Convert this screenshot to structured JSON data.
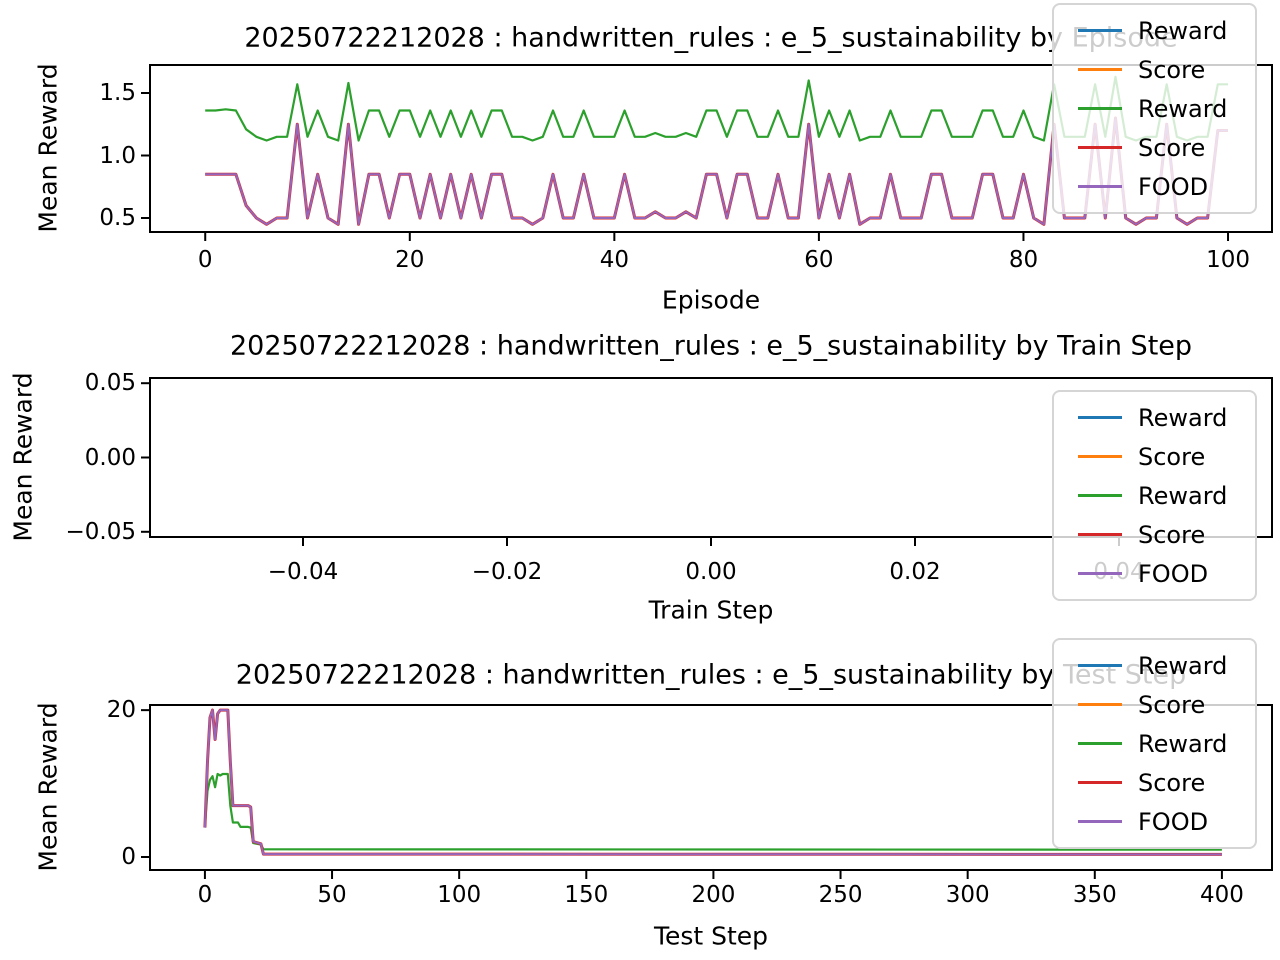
{
  "figure": {
    "background": "#ffffff"
  },
  "palette": {
    "blue": "#1f77b4",
    "orange": "#ff7f0e",
    "green": "#2ca02c",
    "red": "#d62728",
    "purple": "#9467bd"
  },
  "chart_data": [
    {
      "type": "line",
      "title": "20250722212028 : handwritten_rules : e_5_sustainability by Episode",
      "xlabel": "Episode",
      "ylabel": "Mean Reward",
      "xlim": [
        -5.4,
        104.3
      ],
      "ylim": [
        0.388,
        1.724
      ],
      "grid": false,
      "legend_position": "upper right",
      "xticks": {
        "values": [
          0,
          20,
          40,
          60,
          80,
          100
        ],
        "labels": [
          "0",
          "20",
          "40",
          "60",
          "80",
          "100"
        ]
      },
      "yticks": {
        "values": [
          0.5,
          1.0,
          1.5
        ],
        "labels": [
          "0.5",
          "1.0",
          "1.5"
        ]
      },
      "legend": [
        {
          "label": "Reward",
          "color": "#1f77b4"
        },
        {
          "label": "Score",
          "color": "#ff7f0e"
        },
        {
          "label": "Reward",
          "color": "#2ca02c"
        },
        {
          "label": "Score",
          "color": "#d62728"
        },
        {
          "label": "FOOD",
          "color": "#9467bd"
        }
      ],
      "series": [
        {
          "name": "Reward",
          "color": "#1f77b4",
          "width": 2.2,
          "y": []
        },
        {
          "name": "Score",
          "color": "#ff7f0e",
          "width": 2.2,
          "y": []
        },
        {
          "name": "Reward",
          "color": "#2ca02c",
          "width": 2.2,
          "x0": 0,
          "dx": 1,
          "y": [
            1.36,
            1.36,
            1.37,
            1.36,
            1.21,
            1.15,
            1.12,
            1.15,
            1.15,
            1.57,
            1.15,
            1.36,
            1.15,
            1.12,
            1.58,
            1.12,
            1.36,
            1.36,
            1.15,
            1.36,
            1.36,
            1.15,
            1.36,
            1.15,
            1.36,
            1.15,
            1.36,
            1.15,
            1.36,
            1.36,
            1.15,
            1.15,
            1.12,
            1.15,
            1.36,
            1.15,
            1.15,
            1.36,
            1.15,
            1.15,
            1.15,
            1.36,
            1.15,
            1.15,
            1.18,
            1.15,
            1.15,
            1.18,
            1.15,
            1.36,
            1.36,
            1.15,
            1.36,
            1.36,
            1.15,
            1.15,
            1.36,
            1.15,
            1.15,
            1.6,
            1.15,
            1.36,
            1.15,
            1.36,
            1.12,
            1.15,
            1.15,
            1.36,
            1.15,
            1.15,
            1.15,
            1.36,
            1.36,
            1.15,
            1.15,
            1.15,
            1.36,
            1.36,
            1.15,
            1.15,
            1.36,
            1.15,
            1.12,
            1.57,
            1.15,
            1.15,
            1.15,
            1.57,
            1.15,
            1.63,
            1.15,
            1.12,
            1.15,
            1.15,
            1.57,
            1.15,
            1.12,
            1.15,
            1.15,
            1.57,
            1.57
          ]
        },
        {
          "name": "Score",
          "color": "#d62728",
          "width": 3.0,
          "x0": 0,
          "dx": 1,
          "y": [
            0.85,
            0.85,
            0.85,
            0.85,
            0.6,
            0.5,
            0.45,
            0.5,
            0.5,
            1.25,
            0.5,
            0.85,
            0.5,
            0.45,
            1.25,
            0.45,
            0.85,
            0.85,
            0.5,
            0.85,
            0.85,
            0.5,
            0.85,
            0.5,
            0.85,
            0.5,
            0.85,
            0.5,
            0.85,
            0.85,
            0.5,
            0.5,
            0.45,
            0.5,
            0.85,
            0.5,
            0.5,
            0.85,
            0.5,
            0.5,
            0.5,
            0.85,
            0.5,
            0.5,
            0.55,
            0.5,
            0.5,
            0.55,
            0.5,
            0.85,
            0.85,
            0.5,
            0.85,
            0.85,
            0.5,
            0.5,
            0.85,
            0.5,
            0.5,
            1.25,
            0.5,
            0.85,
            0.5,
            0.85,
            0.45,
            0.5,
            0.5,
            0.85,
            0.5,
            0.5,
            0.5,
            0.85,
            0.85,
            0.5,
            0.5,
            0.5,
            0.85,
            0.85,
            0.5,
            0.5,
            0.85,
            0.5,
            0.45,
            1.25,
            0.5,
            0.5,
            0.5,
            1.25,
            0.5,
            1.3,
            0.5,
            0.45,
            0.5,
            0.5,
            1.25,
            0.5,
            0.45,
            0.5,
            0.5,
            1.2,
            1.2
          ]
        },
        {
          "name": "FOOD",
          "color": "#9467bd",
          "width": 2.0,
          "x0": 0,
          "dx": 1,
          "y": [
            0.85,
            0.85,
            0.85,
            0.85,
            0.6,
            0.5,
            0.45,
            0.5,
            0.5,
            1.25,
            0.5,
            0.85,
            0.5,
            0.45,
            1.25,
            0.45,
            0.85,
            0.85,
            0.5,
            0.85,
            0.85,
            0.5,
            0.85,
            0.5,
            0.85,
            0.5,
            0.85,
            0.5,
            0.85,
            0.85,
            0.5,
            0.5,
            0.45,
            0.5,
            0.85,
            0.5,
            0.5,
            0.85,
            0.5,
            0.5,
            0.5,
            0.85,
            0.5,
            0.5,
            0.55,
            0.5,
            0.5,
            0.55,
            0.5,
            0.85,
            0.85,
            0.5,
            0.85,
            0.85,
            0.5,
            0.5,
            0.85,
            0.5,
            0.5,
            1.25,
            0.5,
            0.85,
            0.5,
            0.85,
            0.45,
            0.5,
            0.5,
            0.85,
            0.5,
            0.5,
            0.5,
            0.85,
            0.85,
            0.5,
            0.5,
            0.5,
            0.85,
            0.85,
            0.5,
            0.5,
            0.85,
            0.5,
            0.45,
            1.25,
            0.5,
            0.5,
            0.5,
            1.25,
            0.5,
            1.3,
            0.5,
            0.45,
            0.5,
            0.5,
            1.25,
            0.5,
            0.45,
            0.5,
            0.5,
            1.2,
            1.2
          ]
        }
      ]
    },
    {
      "type": "line",
      "title": "20250722212028 : handwritten_rules : e_5_sustainability by Train Step",
      "xlabel": "Train Step",
      "ylabel": "Mean Reward",
      "xlim": [
        -0.055,
        0.055
      ],
      "ylim": [
        -0.0535,
        0.0535
      ],
      "grid": false,
      "legend_position": "right",
      "xticks": {
        "values": [
          -0.04,
          -0.02,
          0.0,
          0.02,
          0.04
        ],
        "labels": [
          "−0.04",
          "−0.02",
          "0.00",
          "0.02",
          "0.04"
        ]
      },
      "yticks": {
        "values": [
          0.05,
          0.0,
          -0.05
        ],
        "labels": [
          "0.05",
          "0.00",
          "−0.05"
        ]
      },
      "legend": [
        {
          "label": "Reward",
          "color": "#1f77b4"
        },
        {
          "label": "Score",
          "color": "#ff7f0e"
        },
        {
          "label": "Reward",
          "color": "#2ca02c"
        },
        {
          "label": "Score",
          "color": "#d62728"
        },
        {
          "label": "FOOD",
          "color": "#9467bd"
        }
      ],
      "series": []
    },
    {
      "type": "line",
      "title": "20250722212028 : handwritten_rules : e_5_sustainability by Test Step",
      "xlabel": "Test Step",
      "ylabel": "Mean Reward",
      "xlim": [
        -21.6,
        419.7
      ],
      "ylim": [
        -1.77,
        20.7
      ],
      "grid": false,
      "legend_position": "upper right",
      "xticks": {
        "values": [
          0,
          50,
          100,
          150,
          200,
          250,
          300,
          350,
          400
        ],
        "labels": [
          "0",
          "50",
          "100",
          "150",
          "200",
          "250",
          "300",
          "350",
          "400"
        ]
      },
      "yticks": {
        "values": [
          0,
          20
        ],
        "labels": [
          "0",
          "20"
        ]
      },
      "legend": [
        {
          "label": "Reward",
          "color": "#1f77b4"
        },
        {
          "label": "Score",
          "color": "#ff7f0e"
        },
        {
          "label": "Reward",
          "color": "#2ca02c"
        },
        {
          "label": "Score",
          "color": "#d62728"
        },
        {
          "label": "FOOD",
          "color": "#9467bd"
        }
      ],
      "series": [
        {
          "name": "Reward",
          "color": "#1f77b4",
          "width": 2.2,
          "points": []
        },
        {
          "name": "Score",
          "color": "#ff7f0e",
          "width": 2.2,
          "points": []
        },
        {
          "name": "Reward",
          "color": "#2ca02c",
          "width": 2.2,
          "points": [
            [
              0,
              4
            ],
            [
              1,
              9
            ],
            [
              2,
              10.5
            ],
            [
              3,
              11
            ],
            [
              4,
              9.5
            ],
            [
              5,
              11.3
            ],
            [
              6,
              11.1
            ],
            [
              7,
              11.3
            ],
            [
              9,
              11.3
            ],
            [
              10,
              7
            ],
            [
              11,
              4.7
            ],
            [
              13,
              4.7
            ],
            [
              14,
              4.1
            ],
            [
              17,
              4.1
            ],
            [
              18,
              4.0
            ],
            [
              19,
              1.9
            ],
            [
              22,
              1.7
            ],
            [
              23,
              1.05
            ],
            [
              400,
              1.0
            ]
          ]
        },
        {
          "name": "Score",
          "color": "#d62728",
          "width": 3.0,
          "points": [
            [
              0,
              4
            ],
            [
              1,
              13
            ],
            [
              2,
              19
            ],
            [
              3,
              20
            ],
            [
              4,
              16
            ],
            [
              5,
              19.5
            ],
            [
              6,
              20
            ],
            [
              9,
              20
            ],
            [
              10,
              13
            ],
            [
              11,
              7
            ],
            [
              17,
              7
            ],
            [
              18,
              6.8
            ],
            [
              19,
              2.1
            ],
            [
              22,
              1.8
            ],
            [
              23,
              0.4
            ],
            [
              400,
              0.35
            ]
          ]
        },
        {
          "name": "FOOD",
          "color": "#9467bd",
          "width": 2.0,
          "points": [
            [
              0,
              4
            ],
            [
              1,
              13
            ],
            [
              2,
              19
            ],
            [
              3,
              20
            ],
            [
              4,
              16
            ],
            [
              5,
              19.5
            ],
            [
              6,
              20
            ],
            [
              9,
              20
            ],
            [
              10,
              13
            ],
            [
              11,
              7
            ],
            [
              17,
              7
            ],
            [
              18,
              6.8
            ],
            [
              19,
              2.1
            ],
            [
              22,
              1.8
            ],
            [
              23,
              0.4
            ],
            [
              400,
              0.35
            ]
          ]
        }
      ]
    }
  ]
}
